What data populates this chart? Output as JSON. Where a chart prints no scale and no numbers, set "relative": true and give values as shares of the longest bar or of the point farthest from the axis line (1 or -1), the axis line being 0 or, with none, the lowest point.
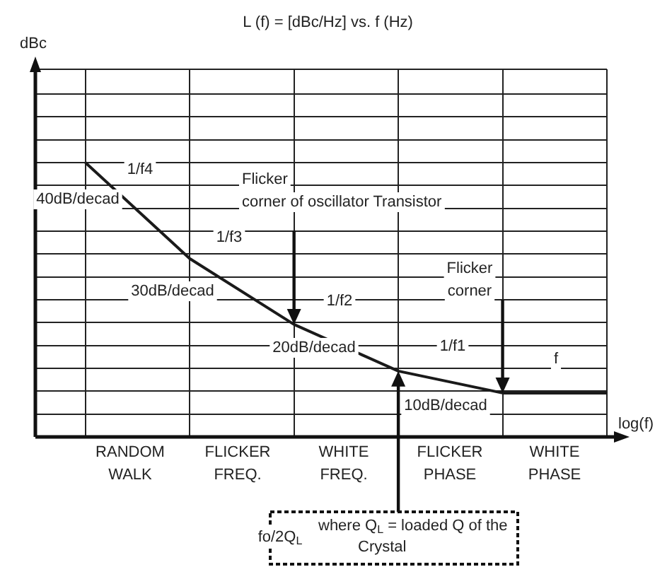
{
  "chart_data": {
    "type": "line",
    "title": "L (f) = [dBc/Hz] vs. f (Hz)",
    "xlabel": "log(f)",
    "categories": [
      null,
      null,
      null,
      null,
      null,
      null
    ],
    "relative": true,
    "grid": true,
    "marker": "none",
    "line_style": "solid",
    "series": [
      {
        "color": "#1a1a1a",
        "values": [
          1,
          0.65,
          0.41,
          0.24,
          0.16,
          0.16
        ]
      }
    ],
    "annotations": [
      "1/f4",
      "40dB/decad",
      "Flicker corner of oscillator Transistor",
      "1/f3",
      "30dB/decad",
      "1/f2",
      "20dB/decad",
      "Flicker corner",
      "1/f1",
      "f",
      "10dB/decad",
      "RANDOM WALK",
      "FLICKER FREQ.",
      "WHITE FREQ.",
      "FLICKER PHASE",
      "WHITE PHASE",
      "fo/2Q$_{L}$",
      "where Q$_{L}$ = loaded Q of the Crystal",
      "dBc"
    ]
  }
}
